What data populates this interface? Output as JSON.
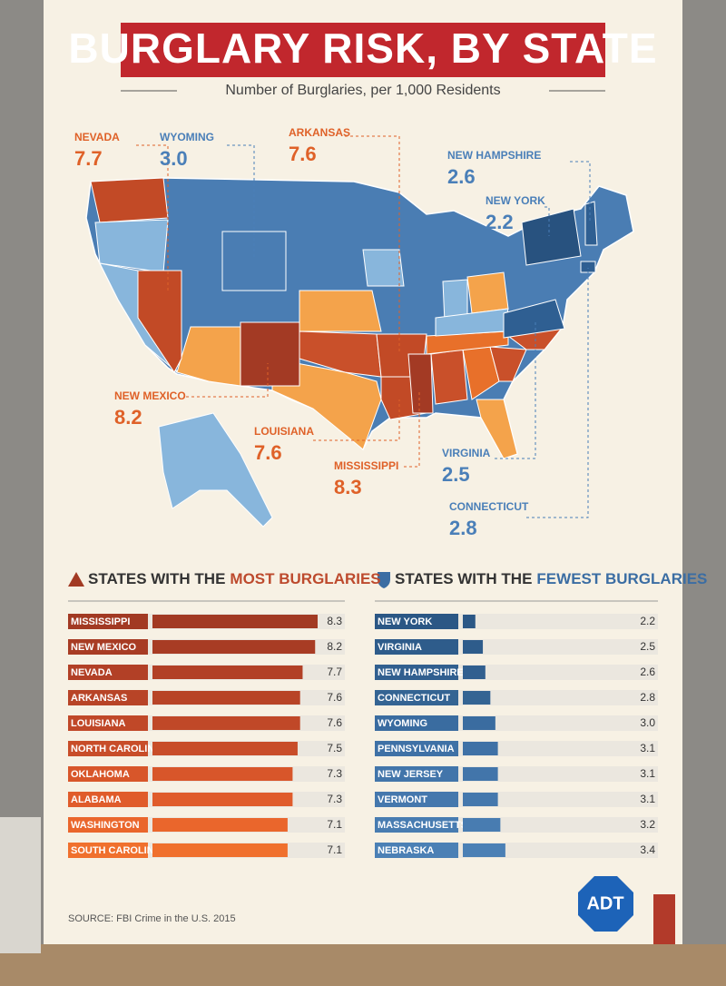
{
  "header": {
    "title": "BURGLARY RISK, BY STATE",
    "subtitle": "Number of Burglaries, per 1,000 Residents"
  },
  "chart_data": [
    {
      "type": "map",
      "categories": [
        "NEVADA",
        "WYOMING",
        "ARKANSAS",
        "NEW HAMPSHIRE",
        "NEW YORK",
        "NEW MEXICO",
        "LOUISIANA",
        "MISSISSIPPI",
        "VIRGINIA",
        "CONNECTICUT"
      ],
      "values": [
        7.7,
        3.0,
        7.6,
        2.6,
        2.2,
        8.2,
        7.6,
        8.3,
        2.5,
        2.8
      ],
      "value_labels": [
        "7.7",
        "3.0",
        "7.6",
        "2.6",
        "2.2",
        "8.2",
        "7.6",
        "8.3",
        "2.5",
        "2.8"
      ]
    },
    {
      "type": "hbar",
      "title": "STATES WITH THE",
      "title_emphasis": "MOST BURGLARIES",
      "categories": [
        "MISSISSIPPI",
        "NEW MEXICO",
        "NEVADA",
        "ARKANSAS",
        "LOUISIANA",
        "NORTH CAROLINA",
        "OKLAHOMA",
        "ALABAMA",
        "WASHINGTON",
        "SOUTH CAROLINA"
      ],
      "values": [
        8.3,
        8.2,
        7.7,
        7.6,
        7.6,
        7.5,
        7.3,
        7.3,
        7.1,
        7.1
      ],
      "colors": [
        "#a23a23",
        "#a83c24",
        "#b24026",
        "#b84427",
        "#c04828",
        "#c84d29",
        "#d8562a",
        "#e05c2b",
        "#ea662c",
        "#f0702d"
      ],
      "color": "#bd4a2d",
      "xlim": [
        1.7,
        8.3
      ]
    },
    {
      "type": "hbar",
      "title": "STATES WITH THE",
      "title_emphasis": "FEWEST BURGLARIES",
      "categories": [
        "NEW YORK",
        "VIRGINIA",
        "NEW HAMPSHIRE",
        "CONNECTICUT",
        "WYOMING",
        "PENNSYLVANIA",
        "NEW JERSEY",
        "VERMONT",
        "MASSACHUSETTS",
        "NEBRASKA"
      ],
      "values": [
        2.2,
        2.5,
        2.6,
        2.8,
        3.0,
        3.1,
        3.1,
        3.1,
        3.2,
        3.4
      ],
      "value_labels": [
        "2.2",
        "2.5",
        "2.6",
        "2.8",
        "3.0",
        "3.1",
        "3.1",
        "3.1",
        "3.2",
        "3.4"
      ],
      "colors": [
        "#2b5785",
        "#2e5c8b",
        "#315f8f",
        "#346493",
        "#3a6ca0",
        "#3f71a6",
        "#4275aa",
        "#4578ad",
        "#487cb1",
        "#4b80b5"
      ],
      "color": "#3b6da3",
      "xlim": [
        1.7,
        8.3
      ]
    }
  ],
  "source": "SOURCE: FBI Crime in the U.S. 2015",
  "logo": "ADT"
}
